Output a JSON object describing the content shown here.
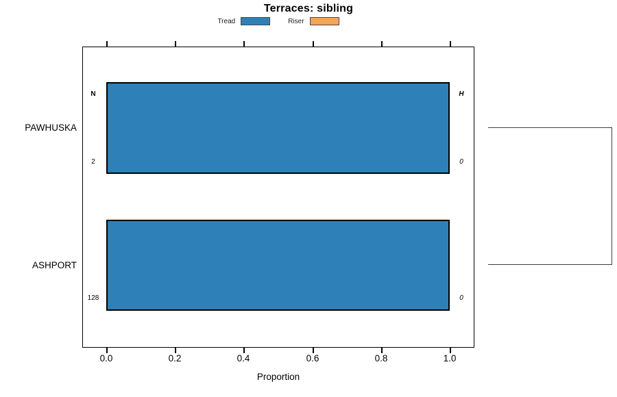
{
  "title": "Terraces: sibling",
  "legend": {
    "position": "top",
    "items": [
      {
        "label": "Tread",
        "color": "#2E81B8"
      },
      {
        "label": "Riser",
        "color": "#F8A35C"
      }
    ]
  },
  "axis": {
    "xlabel": "Proportion",
    "xtick_labels": [
      "0.0",
      "0.2",
      "0.4",
      "0.6",
      "0.8",
      "1.0"
    ]
  },
  "rows": [
    {
      "category": "PAWHUSKA",
      "left_header": "N",
      "right_header": "H",
      "left_value": "2",
      "right_value": "0"
    },
    {
      "category": "ASHPORT",
      "left_value": "128",
      "right_value": "0"
    }
  ],
  "chart_data": {
    "type": "bar",
    "orientation": "horizontal",
    "title": "Terraces: sibling",
    "xlabel": "Proportion",
    "ylabel": "",
    "xlim": [
      0,
      1
    ],
    "xticks": [
      0.0,
      0.2,
      0.4,
      0.6,
      0.8,
      1.0
    ],
    "ticks_mirrored_top": true,
    "grid": false,
    "legend_position": "top",
    "categories": [
      "PAWHUSKA",
      "ASHPORT"
    ],
    "series": [
      {
        "name": "Tread",
        "color": "#2E81B8",
        "values": [
          1.0,
          1.0
        ]
      },
      {
        "name": "Riser",
        "color": "#F8A35C",
        "values": [
          0.0,
          0.0
        ]
      }
    ],
    "annotations": {
      "left_column_header": "N",
      "right_column_header": "H",
      "left_column_values": [
        2,
        128
      ],
      "right_column_values": [
        0,
        0
      ]
    },
    "right_bracket_links_rows": [
      "PAWHUSKA",
      "ASHPORT"
    ]
  },
  "colors": {
    "tread_fill": "#2E81B8",
    "riser_fill": "#F8A35C",
    "bar_border": "#000000",
    "bracket_line": "#3d3d3d"
  }
}
